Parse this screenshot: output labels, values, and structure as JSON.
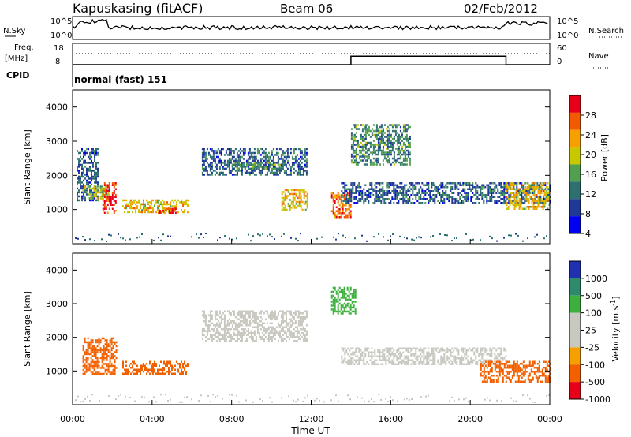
{
  "header": {
    "station": "Kapuskasing (fitACF)",
    "beam": "Beam 06",
    "date": "02/Feb/2012"
  },
  "strip_panels": {
    "nsky_label": "N.Sky",
    "nsearch_label": "N.Search",
    "nsky_ticks": [
      "10^5",
      "10^0"
    ],
    "nsearch_ticks": [
      "10^5",
      "10^0"
    ],
    "freq_label": "Freq.",
    "freq_unit": "[MHz]",
    "freq_ticks": [
      "18",
      "8"
    ],
    "nave_label": "Nave",
    "nave_ticks": [
      "60",
      "0"
    ],
    "cpid_label": "CPID",
    "cpid_value": "normal (fast) 151"
  },
  "power_panel": {
    "ylabel": "Slant Range [km]",
    "yticks": [
      "4000",
      "3000",
      "2000",
      "1000"
    ],
    "colorbar_label": "Power [dB]",
    "colorbar_ticks": [
      "28",
      "24",
      "20",
      "16",
      "12",
      "8",
      "4"
    ],
    "colorbar_colors": [
      "#e8001a",
      "#f25a00",
      "#f5a000",
      "#c8c800",
      "#50a050",
      "#2e7070",
      "#203896",
      "#0000f0"
    ]
  },
  "velocity_panel": {
    "ylabel": "Slant Range [km]",
    "yticks": [
      "4000",
      "3000",
      "2000",
      "1000"
    ],
    "colorbar_label": "Velocity [m s^-1]",
    "colorbar_ticks": [
      "1000",
      "500",
      "100",
      "25",
      "-25",
      "-100",
      "-500",
      "-1000"
    ],
    "colorbar_colors": [
      "#2030b0",
      "#2e8a6a",
      "#3cb03c",
      "#c8c8c0",
      "#c8c8c0",
      "#f5a000",
      "#f26000",
      "#e8001a"
    ]
  },
  "x_axis": {
    "label": "Time UT",
    "ticks": [
      "00:00",
      "04:00",
      "08:00",
      "12:00",
      "16:00",
      "20:00",
      "00:00"
    ]
  },
  "chart_data": {
    "type": "heatmap",
    "title": "Kapuskasing (fitACF) Beam 06 02/Feb/2012",
    "x_unit": "hours UT",
    "xlim": [
      0,
      24
    ],
    "ylim": [
      0,
      4500
    ],
    "xlabel": "Time UT",
    "ylabel": "Slant Range [km]",
    "power_bands": [
      {
        "t0": 0.2,
        "t1": 1.3,
        "r0": 1250,
        "r1": 2800,
        "power": 8
      },
      {
        "t0": 0.5,
        "t1": 1.8,
        "r0": 1300,
        "r1": 1700,
        "power": 16
      },
      {
        "t0": 1.5,
        "t1": 2.2,
        "r0": 900,
        "r1": 1800,
        "power": 28
      },
      {
        "t0": 2.5,
        "t1": 5.8,
        "r0": 900,
        "r1": 1300,
        "power": 20
      },
      {
        "t0": 4.2,
        "t1": 5.2,
        "r0": 900,
        "r1": 1050,
        "power": 28
      },
      {
        "t0": 6.5,
        "t1": 11.8,
        "r0": 2000,
        "r1": 2800,
        "power": 8
      },
      {
        "t0": 8.0,
        "t1": 10.5,
        "r0": 2200,
        "r1": 2400,
        "power": 12
      },
      {
        "t0": 10.5,
        "t1": 11.8,
        "r0": 1000,
        "r1": 1600,
        "power": 20
      },
      {
        "t0": 13.0,
        "t1": 14.0,
        "r0": 800,
        "r1": 1500,
        "power": 24
      },
      {
        "t0": 13.5,
        "t1": 24.0,
        "r0": 1200,
        "r1": 1800,
        "power": 8
      },
      {
        "t0": 14.0,
        "t1": 17.0,
        "r0": 2300,
        "r1": 3500,
        "power": 12
      },
      {
        "t0": 21.8,
        "t1": 24.0,
        "r0": 1000,
        "r1": 1800,
        "power": 20
      }
    ],
    "velocity_bands": [
      {
        "t0": 0.5,
        "t1": 2.2,
        "r0": 900,
        "r1": 2000,
        "velocity": -500
      },
      {
        "t0": 2.5,
        "t1": 5.8,
        "r0": 900,
        "r1": 1300,
        "velocity": -500
      },
      {
        "t0": 6.5,
        "t1": 11.8,
        "r0": 1900,
        "r1": 2800,
        "velocity": 0
      },
      {
        "t0": 13.0,
        "t1": 14.2,
        "r0": 2700,
        "r1": 3500,
        "velocity": 100
      },
      {
        "t0": 13.5,
        "t1": 21.8,
        "r0": 1200,
        "r1": 1700,
        "velocity": 0
      },
      {
        "t0": 20.5,
        "t1": 24.0,
        "r0": 700,
        "r1": 1300,
        "velocity": -500
      }
    ],
    "frequency": [
      {
        "t0": 0,
        "t1": 14.0,
        "mhz": 8
      },
      {
        "t0": 14.0,
        "t1": 21.8,
        "mhz": 14
      },
      {
        "t0": 21.8,
        "t1": 24,
        "mhz": 8
      }
    ],
    "nave": 20,
    "cpid": "normal (fast) 151"
  }
}
